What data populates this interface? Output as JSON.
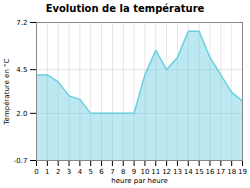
{
  "chart_data": {
    "type": "area",
    "title": "Evolution de la température",
    "xlabel": "heure par heure",
    "ylabel": "Température en °C",
    "x": [
      0,
      1,
      2,
      3,
      4,
      5,
      6,
      7,
      8,
      9,
      10,
      11,
      12,
      13,
      14,
      15,
      16,
      17,
      18,
      19
    ],
    "values": [
      4.2,
      4.2,
      3.8,
      3.0,
      2.8,
      2.0,
      2.0,
      2.0,
      2.0,
      2.0,
      4.2,
      5.6,
      4.5,
      5.2,
      6.7,
      6.7,
      5.2,
      4.2,
      3.2,
      2.7
    ],
    "color": "#6bcfdf",
    "xlim": [
      0,
      19
    ],
    "xticks": [
      0,
      1,
      2,
      3,
      4,
      5,
      6,
      7,
      8,
      9,
      10,
      11,
      12,
      13,
      14,
      15,
      16,
      17,
      18,
      19
    ],
    "ylim": [
      -0.7,
      7.2
    ],
    "yticks": [
      -0.7,
      {
        "value": 2.0,
        "label": "2.0"
      },
      4.5,
      7.2
    ],
    "grid": true
  }
}
